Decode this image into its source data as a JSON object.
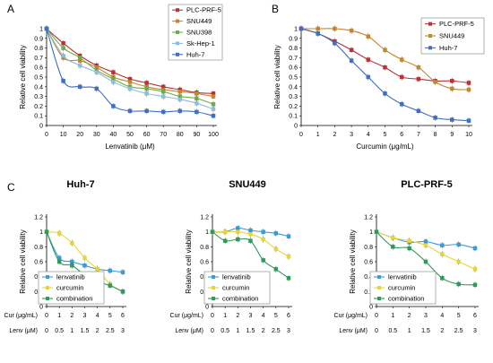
{
  "chart_data": [
    {
      "panel": "A",
      "type": "line",
      "x": [
        0,
        10,
        20,
        30,
        40,
        50,
        60,
        70,
        80,
        90,
        100
      ],
      "xlabel": "Lenvatinib  (μM)",
      "ylabel": "Relative cell viability",
      "xlim": [
        0,
        100
      ],
      "ylim": [
        0,
        1
      ],
      "xticks": [
        "0",
        "10",
        "20",
        "30",
        "40",
        "50",
        "60",
        "70",
        "80",
        "90",
        "100"
      ],
      "yticks": [
        "0",
        "0.1",
        "0.2",
        "0.3",
        "0.4",
        "0.5",
        "0.6",
        "0.7",
        "0.8",
        "0.9",
        "1"
      ],
      "legend": "top-right",
      "series": [
        {
          "name": "PLC-PRF-5",
          "color": "#b83236",
          "marker": "square",
          "values": [
            1.0,
            0.85,
            0.72,
            0.62,
            0.55,
            0.48,
            0.44,
            0.4,
            0.37,
            0.34,
            0.33
          ]
        },
        {
          "name": "SNU449",
          "color": "#c6862a",
          "marker": "square",
          "values": [
            1.0,
            0.7,
            0.67,
            0.6,
            0.5,
            0.45,
            0.4,
            0.37,
            0.35,
            0.33,
            0.3
          ]
        },
        {
          "name": "SNU398",
          "color": "#72ab4a",
          "marker": "square",
          "values": [
            1.0,
            0.8,
            0.7,
            0.57,
            0.48,
            0.4,
            0.38,
            0.35,
            0.3,
            0.28,
            0.22
          ]
        },
        {
          "name": "Sk-Hep-1",
          "color": "#8fbcd9",
          "marker": "square",
          "values": [
            1.0,
            0.72,
            0.62,
            0.55,
            0.45,
            0.38,
            0.33,
            0.3,
            0.27,
            0.23,
            0.17
          ]
        },
        {
          "name": "Huh-7",
          "color": "#3d6fc4",
          "marker": "square",
          "values": [
            1.0,
            0.46,
            0.4,
            0.38,
            0.2,
            0.15,
            0.15,
            0.14,
            0.15,
            0.14,
            0.1
          ]
        }
      ]
    },
    {
      "panel": "B",
      "type": "line",
      "x": [
        0,
        1,
        2,
        3,
        4,
        5,
        6,
        7,
        8,
        9,
        10
      ],
      "xlabel": "Curcumin  (μg/mL)",
      "ylabel": "Relative cell viability",
      "xlim": [
        0,
        10
      ],
      "ylim": [
        0,
        1
      ],
      "xticks": [
        "0",
        "1",
        "2",
        "3",
        "4",
        "5",
        "6",
        "7",
        "8",
        "9",
        "10"
      ],
      "yticks": [
        "0",
        "0.1",
        "0.2",
        "0.3",
        "0.4",
        "0.5",
        "0.6",
        "0.7",
        "0.8",
        "0.9",
        "1"
      ],
      "legend": "top-right",
      "series": [
        {
          "name": "PLC-PRF-5",
          "color": "#b83236",
          "marker": "square",
          "values": [
            1.0,
            0.95,
            0.87,
            0.78,
            0.68,
            0.6,
            0.5,
            0.48,
            0.46,
            0.46,
            0.44
          ]
        },
        {
          "name": "SNU449",
          "color": "#c6862a",
          "marker": "square",
          "values": [
            1.0,
            1.0,
            1.0,
            0.98,
            0.92,
            0.78,
            0.68,
            0.6,
            0.45,
            0.38,
            0.37
          ]
        },
        {
          "name": "Huh-7",
          "color": "#3d6fc4",
          "marker": "square",
          "values": [
            1.0,
            0.95,
            0.85,
            0.67,
            0.5,
            0.33,
            0.22,
            0.15,
            0.08,
            0.06,
            0.05
          ]
        }
      ]
    },
    {
      "panel": "C",
      "title": "Huh-7",
      "type": "line",
      "x": [
        0,
        1,
        2,
        3,
        4,
        5,
        6
      ],
      "xrow1_label": "Cur (μg/mL)",
      "xrow1": [
        "0",
        "1",
        "2",
        "3",
        "4",
        "5",
        "6"
      ],
      "xrow2_label": "Lenv (μM)",
      "xrow2": [
        "0",
        "0.5",
        "1",
        "1.5",
        "2",
        "2.5",
        "3"
      ],
      "ylabel": "Relative cell viability",
      "ylim": [
        0,
        1.2
      ],
      "yticks": [
        "0",
        "0.2",
        "0.4",
        "0.6",
        "0.8",
        "1",
        "1.2"
      ],
      "legend": "bottom-left",
      "series": [
        {
          "name": "lenvatinib",
          "color": "#3b9bd9",
          "marker": "square",
          "values": [
            1.0,
            0.65,
            0.6,
            0.55,
            0.5,
            0.48,
            0.46
          ]
        },
        {
          "name": "curcumin",
          "color": "#e6d53a",
          "marker": "square",
          "values": [
            1.0,
            0.98,
            0.85,
            0.65,
            0.5,
            0.3,
            0.2
          ]
        },
        {
          "name": "combination",
          "color": "#2f9a5c",
          "marker": "square",
          "values": [
            1.0,
            0.6,
            0.55,
            0.42,
            0.33,
            0.28,
            0.2
          ]
        }
      ]
    },
    {
      "panel": "C",
      "title": "SNU449",
      "type": "line",
      "x": [
        0,
        1,
        2,
        3,
        4,
        5,
        6
      ],
      "xrow1_label": "Cur (μg/mL)",
      "xrow1": [
        "0",
        "1",
        "2",
        "3",
        "4",
        "5",
        "6"
      ],
      "xrow2_label": "Lenv (μM)",
      "xrow2": [
        "0",
        "0.5",
        "1",
        "1.5",
        "2",
        "2.5",
        "3"
      ],
      "ylabel": "Relative cell viability",
      "ylim": [
        0,
        1.2
      ],
      "yticks": [
        "0",
        "0.2",
        "0.4",
        "0.6",
        "0.8",
        "1",
        "1.2"
      ],
      "legend": "bottom-left",
      "series": [
        {
          "name": "lenvatinib",
          "color": "#3b9bd9",
          "marker": "square",
          "values": [
            1.0,
            1.0,
            1.05,
            1.02,
            1.0,
            0.98,
            0.94
          ]
        },
        {
          "name": "curcumin",
          "color": "#e6d53a",
          "marker": "square",
          "values": [
            1.0,
            1.0,
            1.0,
            0.97,
            0.9,
            0.77,
            0.67
          ]
        },
        {
          "name": "combination",
          "color": "#2f9a5c",
          "marker": "square",
          "values": [
            1.0,
            0.88,
            0.9,
            0.88,
            0.62,
            0.5,
            0.38
          ]
        }
      ]
    },
    {
      "panel": "C",
      "title": "PLC-PRF-5",
      "type": "line",
      "x": [
        0,
        1,
        2,
        3,
        4,
        5,
        6
      ],
      "xrow1_label": "Cur (μg/mL)",
      "xrow1": [
        "0",
        "1",
        "2",
        "3",
        "4",
        "5",
        "6"
      ],
      "xrow2_label": "Lenv (μM)",
      "xrow2": [
        "0",
        "0.5",
        "1",
        "1.5",
        "2",
        "2.5",
        "3"
      ],
      "ylabel": "Relative cell viability",
      "ylim": [
        0,
        1.2
      ],
      "yticks": [
        "0",
        "0.2",
        "0.4",
        "0.6",
        "0.8",
        "1",
        "1.2"
      ],
      "legend": "bottom-left",
      "series": [
        {
          "name": "lenvatinib",
          "color": "#3b9bd9",
          "marker": "square",
          "values": [
            1.0,
            0.92,
            0.86,
            0.87,
            0.82,
            0.83,
            0.78
          ]
        },
        {
          "name": "curcumin",
          "color": "#e6d53a",
          "marker": "square",
          "values": [
            1.0,
            0.92,
            0.88,
            0.82,
            0.7,
            0.6,
            0.5
          ]
        },
        {
          "name": "combination",
          "color": "#2f9a5c",
          "marker": "square",
          "values": [
            1.0,
            0.8,
            0.78,
            0.6,
            0.38,
            0.3,
            0.29
          ]
        }
      ]
    }
  ]
}
